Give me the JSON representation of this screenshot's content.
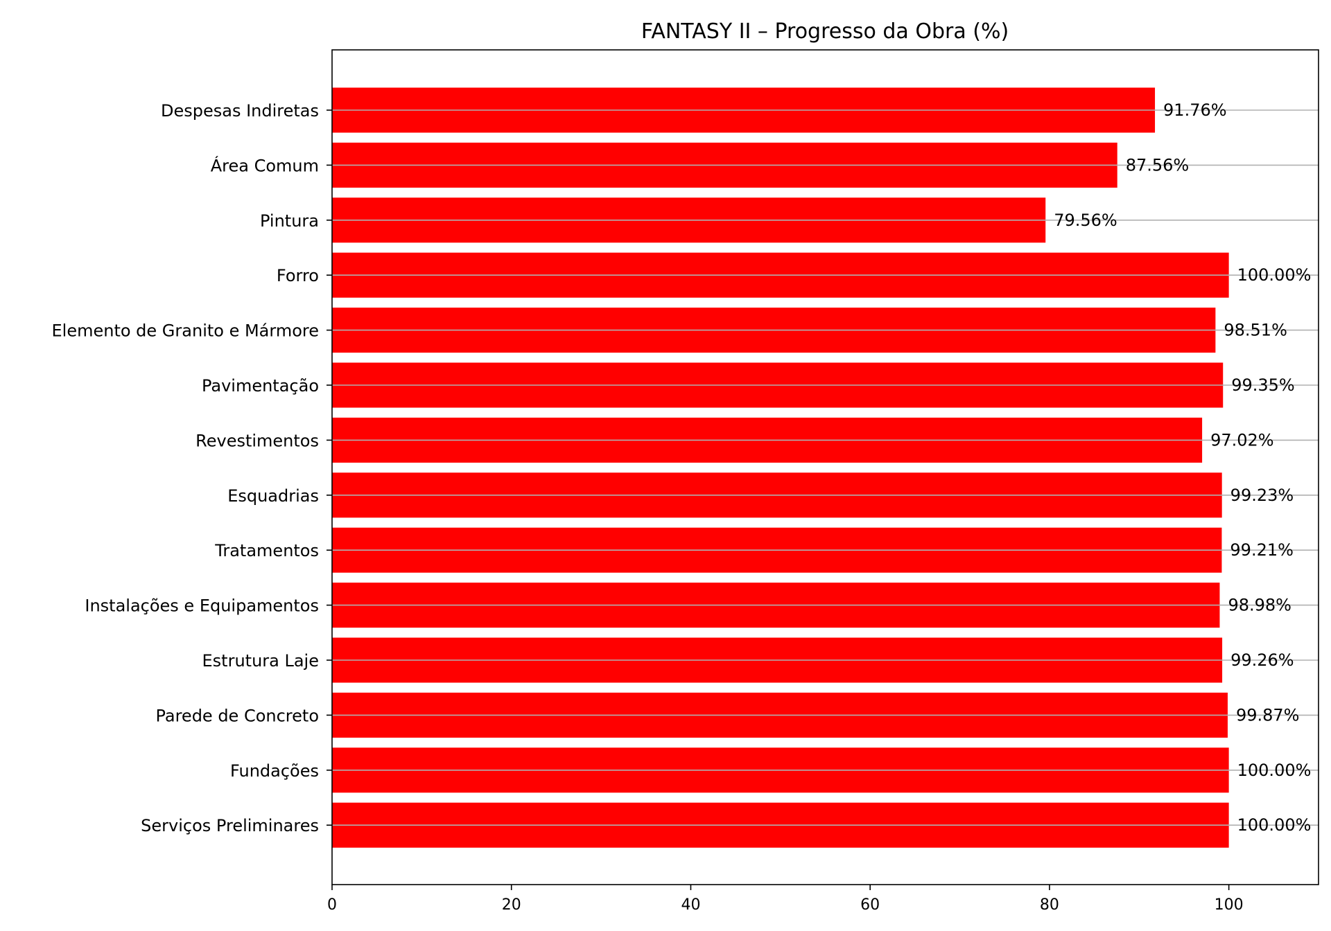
{
  "chart_data": {
    "type": "bar",
    "orientation": "horizontal",
    "title": "FANTASY II – Progresso da Obra (%)",
    "xlabel": "",
    "ylabel": "",
    "xlim": [
      0,
      110
    ],
    "x_ticks": [
      0,
      20,
      40,
      60,
      80,
      100
    ],
    "grid": "y-axis gridlines through bar centers",
    "bar_color": "#ff0000",
    "grid_color": "#b0b0b0",
    "categories": [
      "Despesas Indiretas",
      "Área Comum",
      "Pintura",
      "Forro",
      "Elemento de Granito e Mármore",
      "Pavimentação",
      "Revestimentos",
      "Esquadrias",
      "Tratamentos",
      "Instalações e Equipamentos",
      "Estrutura Laje",
      "Parede de Concreto",
      "Fundações",
      "Serviços Preliminares"
    ],
    "values": [
      91.76,
      87.56,
      79.56,
      100.0,
      98.51,
      99.35,
      97.02,
      99.23,
      99.21,
      98.98,
      99.26,
      99.87,
      100.0,
      100.0
    ],
    "value_labels": [
      "91.76%",
      "87.56%",
      "79.56%",
      "100.00%",
      "98.51%",
      "99.35%",
      "97.02%",
      "99.23%",
      "99.21%",
      "98.98%",
      "99.26%",
      "99.87%",
      "100.00%",
      "100.00%"
    ]
  }
}
